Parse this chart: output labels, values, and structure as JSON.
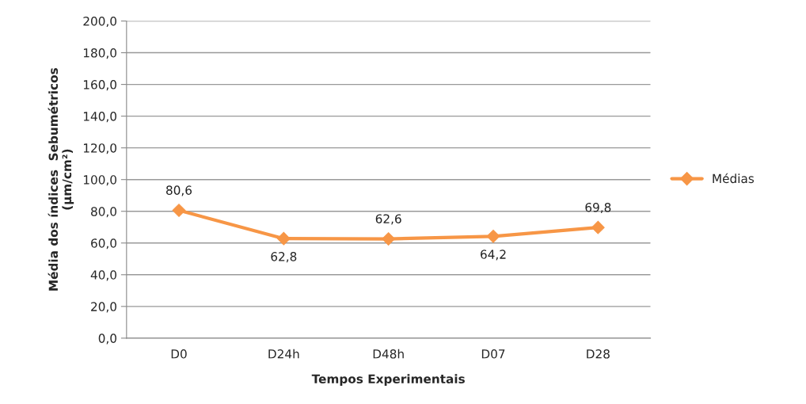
{
  "chart_data": {
    "type": "line",
    "xlabel": "Tempos Experimentais",
    "ylabel": "Média dos índices  Sebumétricos\n(µm/cm²)",
    "categories": [
      "D0",
      "D24h",
      "D48h",
      "D07",
      "D28"
    ],
    "series": [
      {
        "name": "Médias",
        "color": "#f79646",
        "values": [
          80.6,
          62.8,
          62.6,
          64.2,
          69.8
        ],
        "value_labels": [
          "80,6",
          "62,8",
          "62,6",
          "64,2",
          "69,8"
        ]
      }
    ],
    "ylim": [
      0,
      200
    ],
    "yticks": [
      {
        "value": 0,
        "label": "0,0"
      },
      {
        "value": 20,
        "label": "20,0"
      },
      {
        "value": 40,
        "label": "40,0"
      },
      {
        "value": 60,
        "label": "60,0"
      },
      {
        "value": 80,
        "label": "80,0"
      },
      {
        "value": 100,
        "label": "100,0"
      },
      {
        "value": 120,
        "label": "120,0"
      },
      {
        "value": 140,
        "label": "140,0"
      },
      {
        "value": 160,
        "label": "160,0"
      },
      {
        "value": 180,
        "label": "180,0"
      },
      {
        "value": 200,
        "label": "200,0"
      }
    ],
    "grid": "y",
    "legend": "right",
    "marker": "diamond",
    "line_style": "solid"
  }
}
